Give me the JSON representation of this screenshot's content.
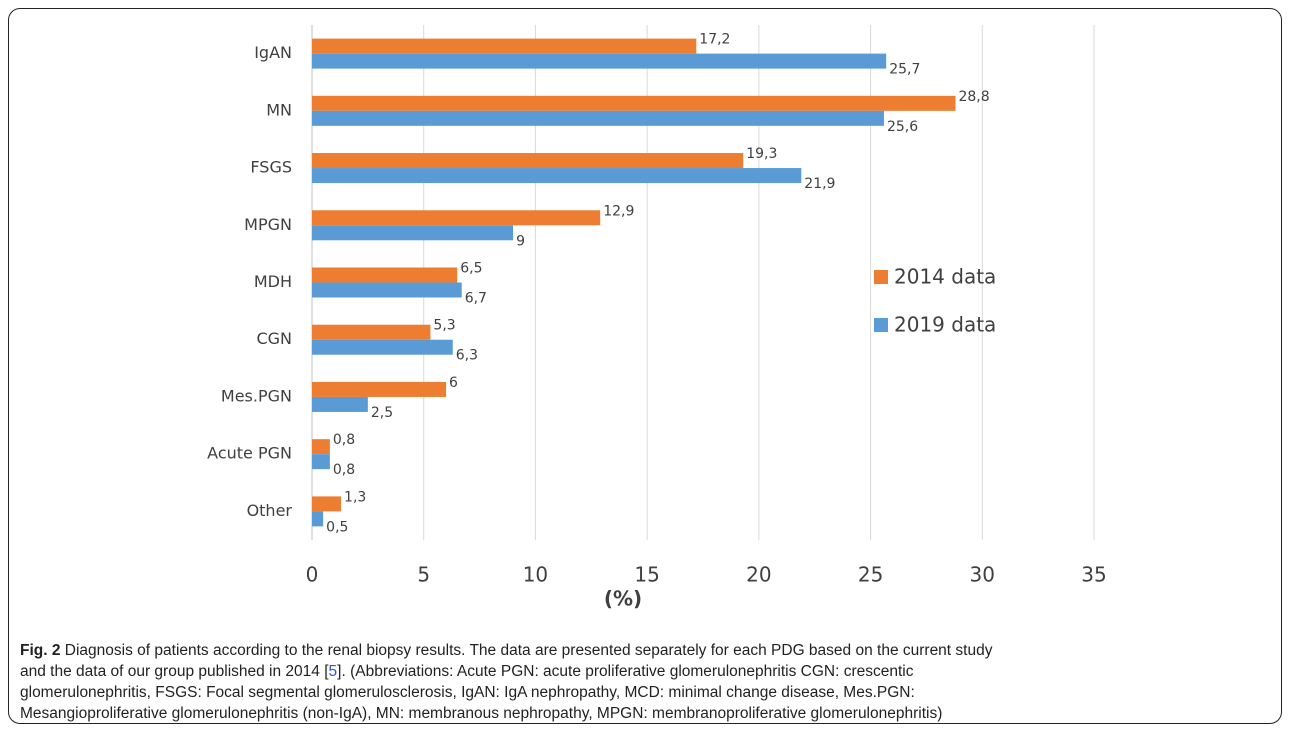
{
  "chart_data": {
    "type": "barh",
    "categories": [
      "IgAN",
      "MN",
      "FSGS",
      "MPGN",
      "MDH",
      "CGN",
      "Mes.PGN",
      "Acute PGN",
      "Other"
    ],
    "series": [
      {
        "name": "2014 data",
        "color": "#ed7d31",
        "values": [
          17.2,
          28.8,
          19.3,
          12.9,
          6.5,
          5.3,
          6,
          0.8,
          1.3
        ],
        "value_labels": [
          "17,2",
          "28,8",
          "19,3",
          "12,9",
          "6,5",
          "5,3",
          "6",
          "0,8",
          "1,3"
        ]
      },
      {
        "name": "2019 data",
        "color": "#5b9bd5",
        "values": [
          25.7,
          25.6,
          21.9,
          9,
          6.7,
          6.3,
          2.5,
          0.8,
          0.5
        ],
        "value_labels": [
          "25,7",
          "25,6",
          "21,9",
          "9",
          "6,7",
          "6,3",
          "2,5",
          "0,8",
          "0,5"
        ]
      }
    ],
    "xlabel": "(%)",
    "xlim": [
      0,
      35
    ],
    "xticks": [
      0,
      5,
      10,
      15,
      20,
      25,
      30,
      35
    ],
    "grid": true,
    "legend": "right"
  },
  "caption": {
    "label": "Fig. 2",
    "line1": "Diagnosis of patients according to the renal biopsy results. The data are presented separately for each PDG based on the current study",
    "line2a": "and the data of our group published in 2014 [",
    "ref": "5",
    "line2b": "]. (Abbreviations: Acute PGN: acute proliferative glomerulonephritis CGN: crescentic",
    "line3": "glomerulonephritis, FSGS: Focal segmental glomerulosclerosis, IgAN: IgA nephropathy, MCD: minimal change disease, Mes.PGN:",
    "line4": "Mesangioproliferative glomerulonephritis (non-IgA), MN: membranous nephropathy, MPGN: membranoproliferative glomerulonephritis)"
  }
}
